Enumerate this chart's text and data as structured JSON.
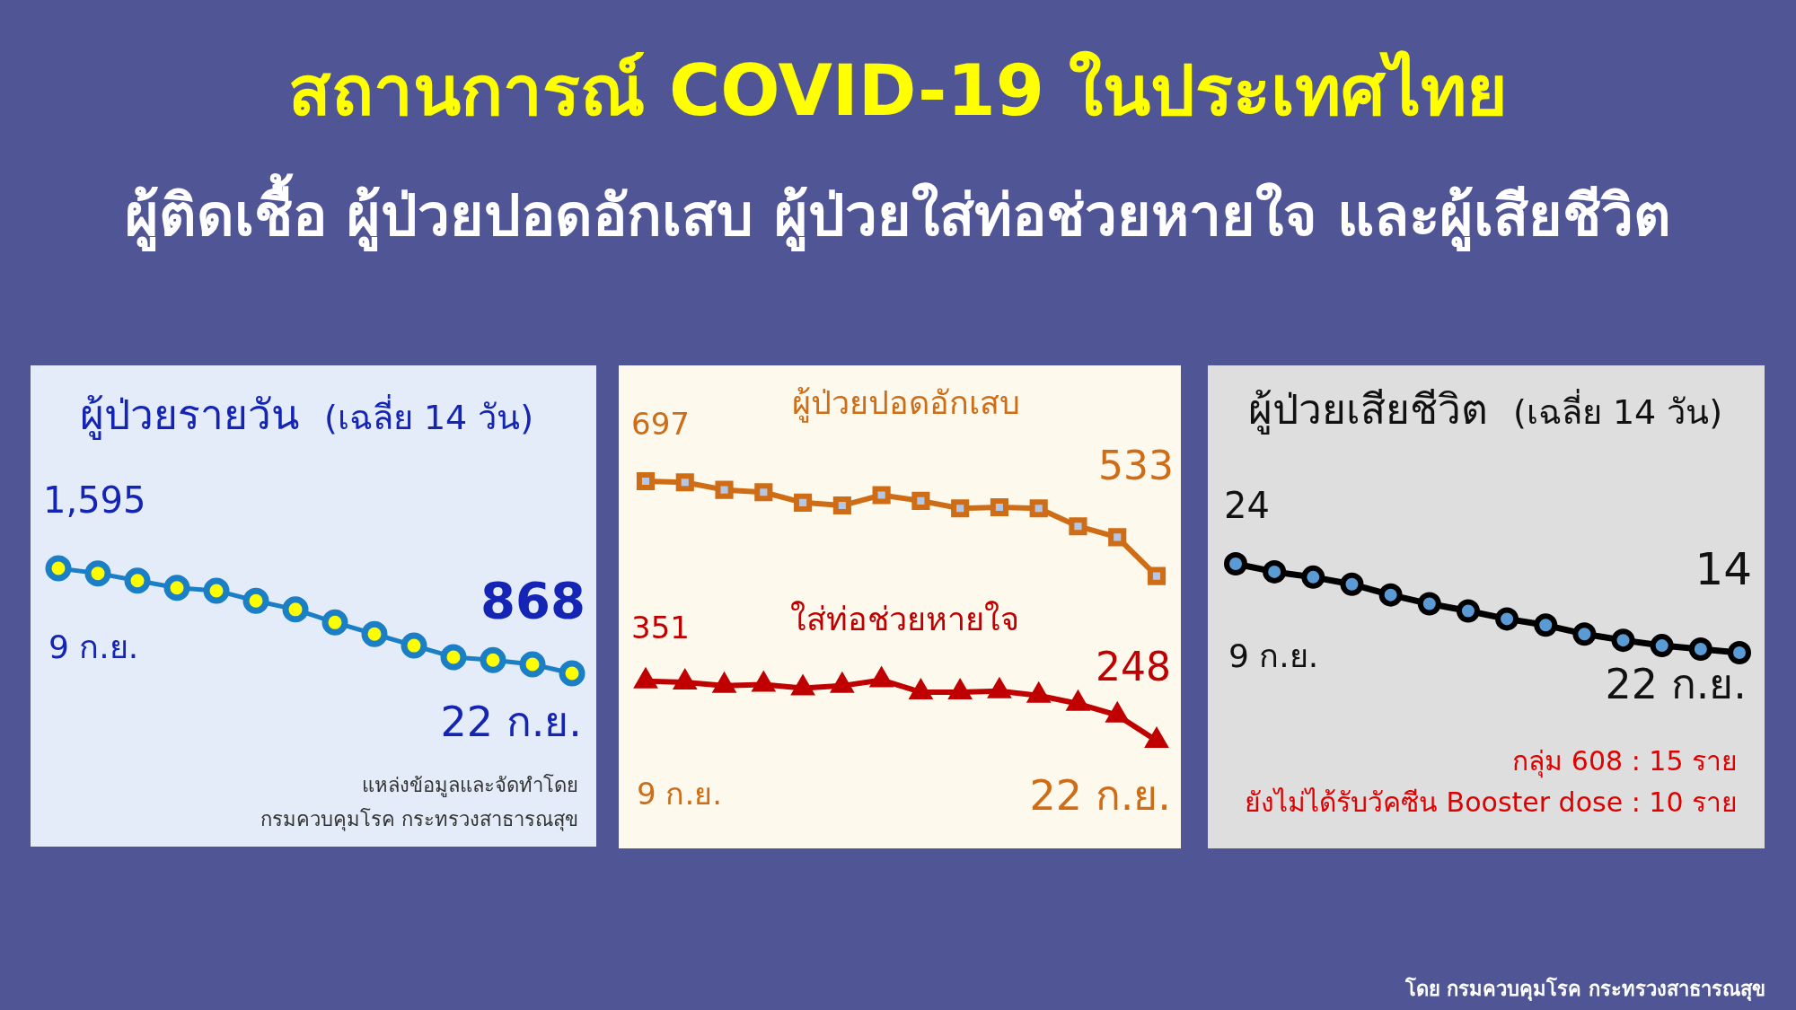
{
  "chart_data": [
    {
      "type": "other",
      "title": "สถานการณ์ COVID-19 ในประเทศไทย",
      "subtitle": "ผู้ติดเชื้อ ผู้ป่วยปอดอักเสบ ผู้ป่วยใส่ท่อช่วยหายใจ และผู้เสียชีวิต",
      "annotations": [
        "โดย กรมควบคุมโรค กระทรวงสาธารณสุข"
      ]
    },
    {
      "type": "line",
      "title": "ผู้ป่วยรายวัน",
      "subtitle": "(เฉลี่ย 14 วัน)",
      "categories": [
        null,
        null,
        null,
        null,
        null,
        null,
        null,
        null,
        null,
        null,
        null,
        null,
        null,
        null
      ],
      "marker": "circle",
      "series": [
        {
          "color": "#1a7fc4",
          "values": [
            1595,
            1560,
            1510,
            1460,
            1440,
            1370,
            1310,
            1220,
            1140,
            1060,
            980,
            960,
            930,
            868
          ],
          "value_labels": [
            "1,595",
            null,
            null,
            null,
            null,
            null,
            null,
            null,
            null,
            null,
            null,
            null,
            null,
            "868"
          ]
        }
      ],
      "annotations": [
        "9 ก.ย.",
        "22 ก.ย.",
        "แหล่งข้อมูลและจัดทำโดย",
        "กรมควบคุมโรค กระทรวงสาธารณสุข"
      ]
    },
    {
      "type": "line",
      "categories": [
        null,
        null,
        null,
        null,
        null,
        null,
        null,
        null,
        null,
        null,
        null,
        null,
        null,
        null
      ],
      "series": [
        {
          "name": "ผู้ป่วยปอดอักเสบ",
          "color": "#cf6d17",
          "marker": "square",
          "values": [
            697,
            695,
            682,
            678,
            660,
            655,
            673,
            663,
            650,
            652,
            650,
            619,
            600,
            533
          ],
          "value_labels": [
            "697",
            null,
            null,
            null,
            null,
            null,
            null,
            null,
            null,
            null,
            null,
            null,
            null,
            "533"
          ]
        },
        {
          "name": "ใส่ท่อช่วยหายใจ",
          "color": "#c00000",
          "marker": "triangle",
          "values": [
            351,
            349,
            343,
            345,
            339,
            343,
            353,
            332,
            332,
            334,
            326,
            312,
            292,
            248
          ],
          "value_labels": [
            "351",
            null,
            null,
            null,
            null,
            null,
            null,
            null,
            null,
            null,
            null,
            null,
            null,
            "248"
          ]
        }
      ],
      "annotations": [
        "9 ก.ย.",
        "22 ก.ย."
      ]
    },
    {
      "type": "line",
      "title": "ผู้ป่วยเสียชีวิต",
      "subtitle": "(เฉลี่ย 14 วัน)",
      "categories": [
        null,
        null,
        null,
        null,
        null,
        null,
        null,
        null,
        null,
        null,
        null,
        null,
        null,
        null
      ],
      "marker": "circle",
      "series": [
        {
          "color": "#000000",
          "values": [
            24,
            23.1,
            22.5,
            21.7,
            20.5,
            19.5,
            18.7,
            17.8,
            17.1,
            16.1,
            15.4,
            14.8,
            14.4,
            14
          ],
          "value_labels": [
            "24",
            null,
            null,
            null,
            null,
            null,
            null,
            null,
            null,
            null,
            null,
            null,
            null,
            "14"
          ]
        }
      ],
      "annotations": [
        "9 ก.ย.",
        "22 ก.ย.",
        "กลุ่ม 608 : 15 ราย",
        "ยังไม่ได้รับวัคซีน Booster dose : 10 ราย"
      ]
    }
  ]
}
